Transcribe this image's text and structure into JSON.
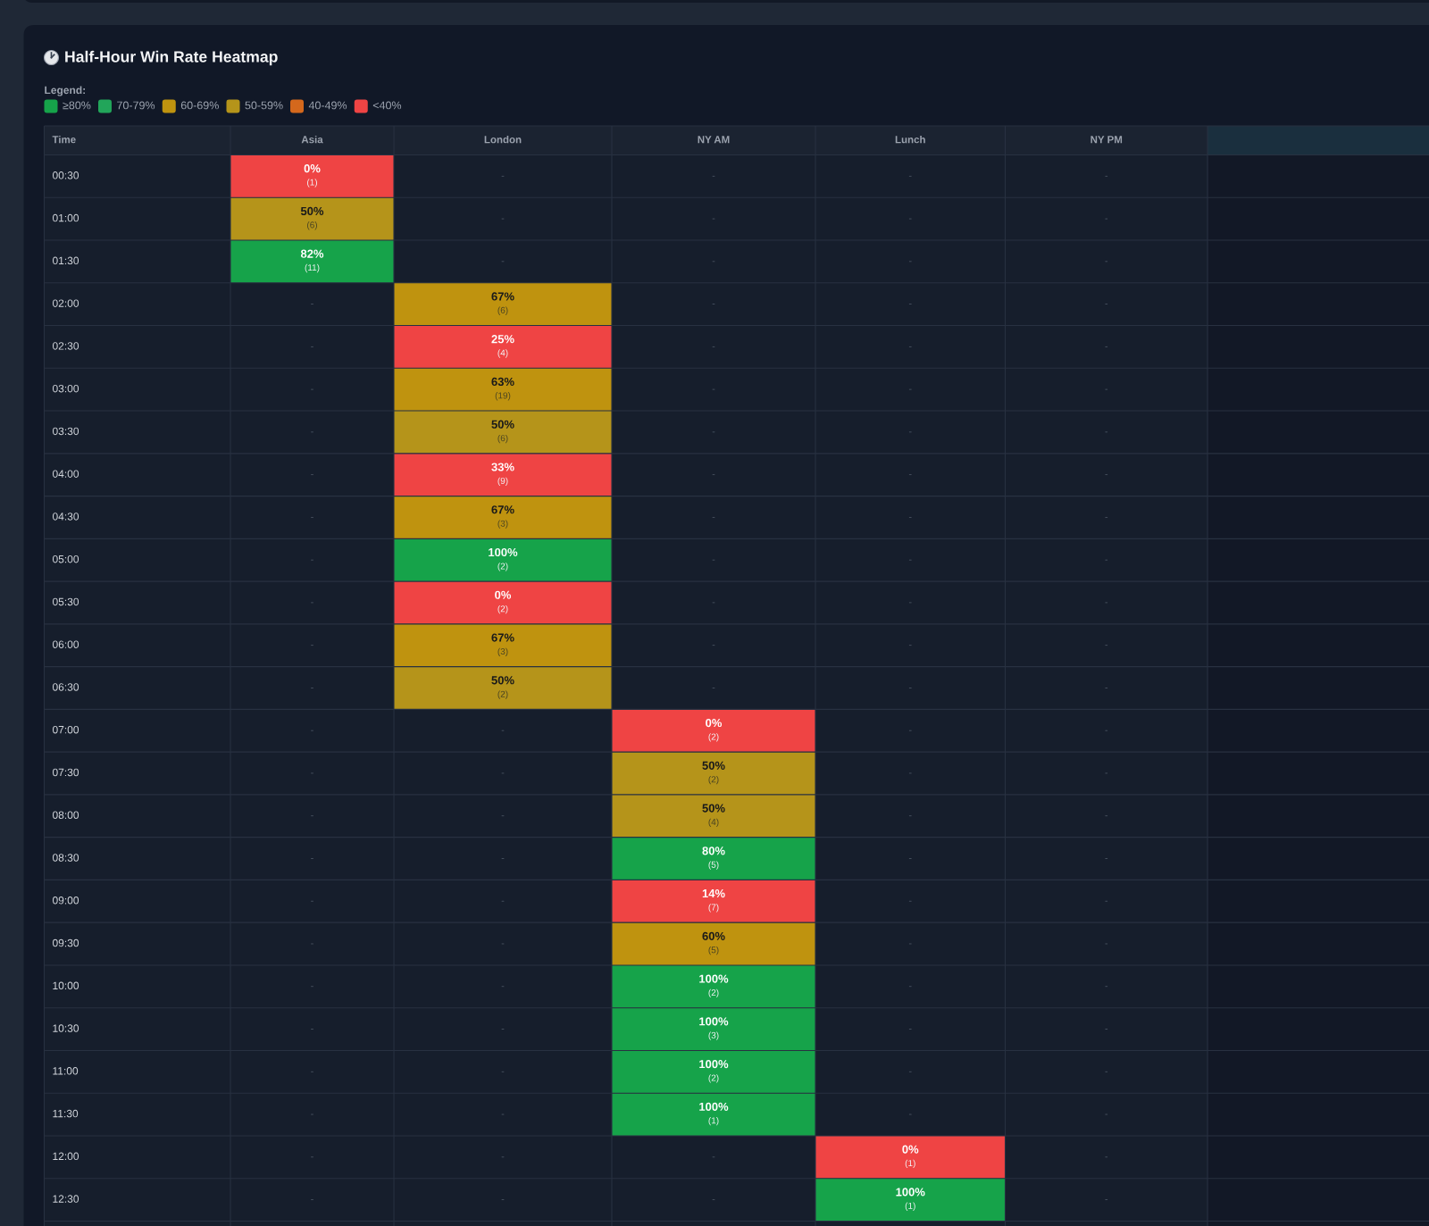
{
  "chart_data": {
    "type": "heatmap",
    "title": "Half-Hour Win Rate Heatmap",
    "legend_title": "Legend:",
    "legend": "top left",
    "series": [
      {
        "name": "≥80%",
        "color": "#16a34a",
        "values": [
          null,
          null,
          null,
          null,
          null,
          null
        ]
      },
      {
        "name": "70-79%",
        "color": "#22a55a",
        "values": [
          null,
          null,
          null,
          null,
          null,
          null
        ]
      },
      {
        "name": "60-69%",
        "color": "#bf930f",
        "values": [
          null,
          null,
          null,
          null,
          null,
          null
        ]
      },
      {
        "name": "50-59%",
        "color": "#b5941a",
        "values": [
          null,
          null,
          null,
          null,
          null,
          null
        ]
      },
      {
        "name": "40-49%",
        "color": "#d4681c",
        "values": [
          null,
          null,
          null,
          null,
          null,
          null
        ]
      },
      {
        "name": "<40%",
        "color": "#ef4444",
        "values": [
          null,
          null,
          null,
          null,
          null,
          null
        ]
      }
    ],
    "ylabel": "Time",
    "categories": [
      "Asia",
      "London",
      "NY AM",
      "Lunch",
      "NY PM",
      null
    ],
    "y_categories": [
      "00:30",
      "01:00",
      "01:30",
      "02:00",
      "02:30",
      "03:00",
      "03:30",
      "04:00",
      "04:30",
      "05:00",
      "05:30",
      "06:00",
      "06:30",
      "07:00",
      "07:30",
      "08:00",
      "08:30",
      "09:00",
      "09:30",
      "10:00",
      "10:30",
      "11:00",
      "11:30",
      "12:00",
      "12:30"
    ],
    "cells": [
      [
        0,
        null,
        null,
        null,
        null,
        null
      ],
      [
        50,
        null,
        null,
        null,
        null,
        null
      ],
      [
        82,
        null,
        null,
        null,
        null,
        null
      ],
      [
        null,
        67,
        null,
        null,
        null,
        null
      ],
      [
        null,
        25,
        null,
        null,
        null,
        null
      ],
      [
        null,
        63,
        null,
        null,
        null,
        null
      ],
      [
        null,
        50,
        null,
        null,
        null,
        null
      ],
      [
        null,
        33,
        null,
        null,
        null,
        null
      ],
      [
        null,
        67,
        null,
        null,
        null,
        null
      ],
      [
        null,
        100,
        null,
        null,
        null,
        null
      ],
      [
        null,
        0,
        null,
        null,
        null,
        null
      ],
      [
        null,
        67,
        null,
        null,
        null,
        null
      ],
      [
        null,
        50,
        null,
        null,
        null,
        null
      ],
      [
        null,
        null,
        0,
        null,
        null,
        null
      ],
      [
        null,
        null,
        50,
        null,
        null,
        null
      ],
      [
        null,
        null,
        50,
        null,
        null,
        null
      ],
      [
        null,
        null,
        80,
        null,
        null,
        null
      ],
      [
        null,
        null,
        14,
        null,
        null,
        null
      ],
      [
        null,
        null,
        60,
        null,
        null,
        null
      ],
      [
        null,
        null,
        100,
        null,
        null,
        null
      ],
      [
        null,
        null,
        100,
        null,
        null,
        null
      ],
      [
        null,
        null,
        100,
        null,
        null,
        null
      ],
      [
        null,
        null,
        100,
        null,
        null,
        null
      ],
      [
        null,
        null,
        null,
        0,
        null,
        null
      ],
      [
        null,
        null,
        null,
        100,
        null,
        null
      ]
    ],
    "colors": [
      [
        "#ef4444",
        null,
        null,
        null,
        null,
        null
      ],
      [
        "#b5941a",
        null,
        null,
        null,
        null,
        null
      ],
      [
        "#16a34a",
        null,
        null,
        null,
        null,
        null
      ],
      [
        null,
        "#bf930f",
        null,
        null,
        null,
        null
      ],
      [
        null,
        "#ef4444",
        null,
        null,
        null,
        null
      ],
      [
        null,
        "#bf930f",
        null,
        null,
        null,
        null
      ],
      [
        null,
        "#b5941a",
        null,
        null,
        null,
        null
      ],
      [
        null,
        "#ef4444",
        null,
        null,
        null,
        null
      ],
      [
        null,
        "#bf930f",
        null,
        null,
        null,
        null
      ],
      [
        null,
        "#16a34a",
        null,
        null,
        null,
        null
      ],
      [
        null,
        "#ef4444",
        null,
        null,
        null,
        null
      ],
      [
        null,
        "#bf930f",
        null,
        null,
        null,
        null
      ],
      [
        null,
        "#b5941a",
        null,
        null,
        null,
        null
      ],
      [
        null,
        null,
        "#ef4444",
        null,
        null,
        null
      ],
      [
        null,
        null,
        "#b5941a",
        null,
        null,
        null
      ],
      [
        null,
        null,
        "#b5941a",
        null,
        null,
        null
      ],
      [
        null,
        null,
        "#16a34a",
        null,
        null,
        null
      ],
      [
        null,
        null,
        "#ef4444",
        null,
        null,
        null
      ],
      [
        null,
        null,
        "#bf930f",
        null,
        null,
        null
      ],
      [
        null,
        null,
        "#16a34a",
        null,
        null,
        null
      ],
      [
        null,
        null,
        "#16a34a",
        null,
        null,
        null
      ],
      [
        null,
        null,
        "#16a34a",
        null,
        null,
        null
      ],
      [
        null,
        null,
        "#16a34a",
        null,
        null,
        null
      ],
      [
        null,
        null,
        null,
        "#ef4444",
        null,
        null
      ],
      [
        null,
        null,
        null,
        "#16a34a",
        null,
        null
      ]
    ],
    "cell_labels": [
      [
        "0%",
        "-",
        "-",
        "-",
        "-",
        null
      ],
      [
        "50%",
        "-",
        "-",
        "-",
        "-",
        null
      ],
      [
        "82%",
        "-",
        "-",
        "-",
        "-",
        null
      ],
      [
        "-",
        "67%",
        "-",
        "-",
        "-",
        null
      ],
      [
        "-",
        "25%",
        "-",
        "-",
        "-",
        null
      ],
      [
        "-",
        "63%",
        "-",
        "-",
        "-",
        null
      ],
      [
        "-",
        "50%",
        "-",
        "-",
        "-",
        null
      ],
      [
        "-",
        "33%",
        "-",
        "-",
        "-",
        null
      ],
      [
        "-",
        "67%",
        "-",
        "-",
        "-",
        null
      ],
      [
        "-",
        "100%",
        "-",
        "-",
        "-",
        null
      ],
      [
        "-",
        "0%",
        "-",
        "-",
        "-",
        null
      ],
      [
        "-",
        "67%",
        "-",
        "-",
        "-",
        null
      ],
      [
        "-",
        "50%",
        "-",
        "-",
        "-",
        null
      ],
      [
        "-",
        "-",
        "0%",
        "-",
        "-",
        null
      ],
      [
        "-",
        "-",
        "50%",
        "-",
        "-",
        null
      ],
      [
        "-",
        "-",
        "50%",
        "-",
        "-",
        null
      ],
      [
        "-",
        "-",
        "80%",
        "-",
        "-",
        null
      ],
      [
        "-",
        "-",
        "14%",
        "-",
        "-",
        null
      ],
      [
        "-",
        "-",
        "60%",
        "-",
        "-",
        null
      ],
      [
        "-",
        "-",
        "100%",
        "-",
        "-",
        null
      ],
      [
        "-",
        "-",
        "100%",
        "-",
        "-",
        null
      ],
      [
        "-",
        "-",
        "100%",
        "-",
        "-",
        null
      ],
      [
        "-",
        "-",
        "100%",
        "-",
        "-",
        null
      ],
      [
        "-",
        "-",
        "-",
        "0%",
        "-",
        null
      ],
      [
        "-",
        "-",
        "-",
        "100%",
        "-",
        null
      ]
    ],
    "annotations": [
      "(1)",
      "(6)",
      "(11)",
      "(6)",
      "(4)",
      "(19)",
      "(6)",
      "(9)",
      "(3)",
      "(2)",
      "(2)",
      "(3)",
      "(2)",
      "(2)",
      "(2)",
      "(4)",
      "(5)",
      "(7)",
      "(5)",
      "(2)",
      "(3)",
      "(2)",
      "(1)",
      "(1)",
      "(1)"
    ]
  }
}
